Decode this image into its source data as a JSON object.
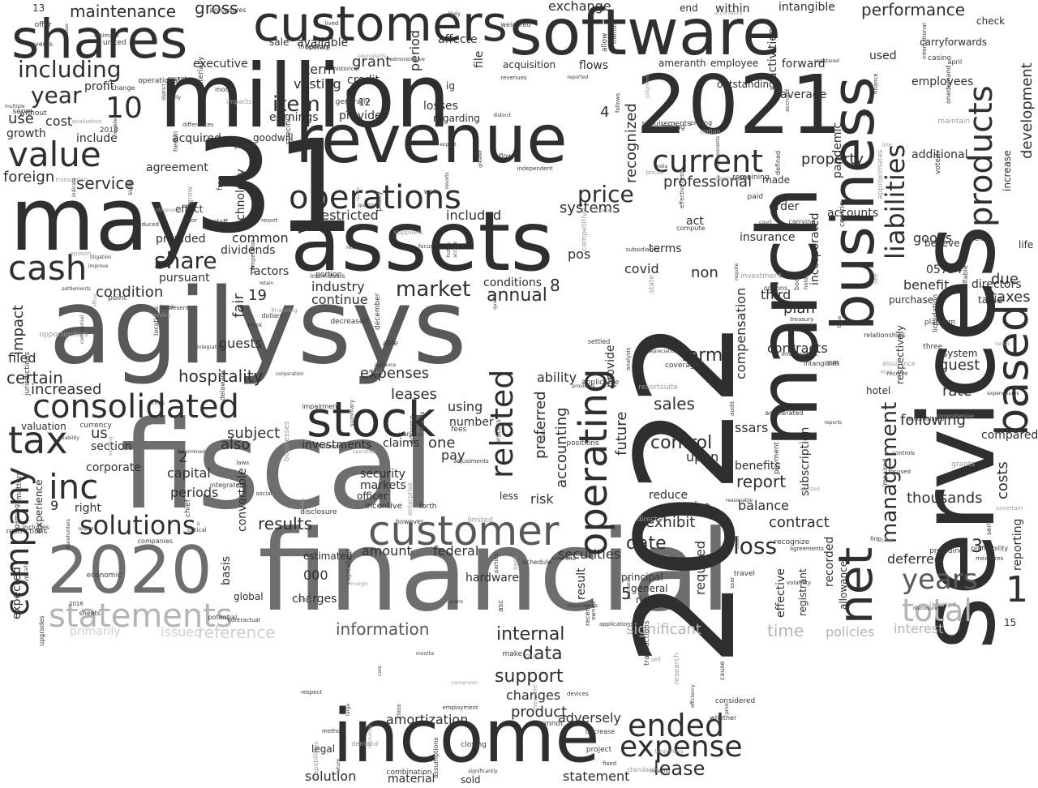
{
  "palette": {
    "dark": "#2f2f2f",
    "mid": "#585858",
    "gray": "#6e6e6e",
    "light": "#b4b4b4",
    "faint": "#cfcfcf"
  },
  "words": {
    "services": "services",
    "fiscal": "fiscal",
    "financial": "financial",
    "agilysys": "agilysys",
    "million": "million",
    "assets": "assets",
    "2021": "2021",
    "2022": "2022",
    "31": "31",
    "may": "may",
    "march": "march",
    "business": "business",
    "revenue": "revenue",
    "software": "software",
    "customers": "customers",
    "shares": "shares",
    "income": "income",
    "2020": "2020",
    "net": "net",
    "stock": "stock",
    "operations": "operations",
    "based": "based",
    "customer": "customer",
    "consolidated": "consolidated",
    "tax": "tax",
    "company": "company",
    "cash": "cash",
    "value": "value",
    "operating": "operating",
    "products": "products",
    "liabilities": "liabilities",
    "management": "management",
    "current": "current",
    "statements": "statements",
    "total": "total",
    "years": "years",
    "expense": "expense",
    "ended": "ended",
    "related": "related",
    "inc": "inc",
    "solutions": "solutions",
    "including": "including",
    "year": "year",
    "10": "10",
    "1": "1",
    "share": "share",
    "market": "market",
    "loss": "loss",
    "price": "price",
    "item": "item",
    "hospitality": "hospitality",
    "information": "information",
    "internal": "internal",
    "data": "data",
    "support": "support",
    "maintenance": "maintenance",
    "gross": "gross",
    "exchange": "exchange",
    "performance": "performance",
    "product": "product",
    "changes": "changes",
    "amortization": "amortization",
    "adversely": "adversely",
    "lease": "lease",
    "solution": "solution",
    "statement": "statement",
    "material": "material",
    "sold": "sold",
    "legal": "legal",
    "restricted": "restricted",
    "included": "included",
    "systems": "systems",
    "recognized": "recognized",
    "professional": "professional",
    "property": "property",
    "development": "development",
    "costs": "costs",
    "reporting": "reporting",
    "taxes": "taxes",
    "due": "due",
    "guest": "guest",
    "rate": "rate",
    "following": "following",
    "thousands": "thousands",
    "compared": "compared",
    "deferred": "deferred",
    "interest": "interest",
    "policies": "policies",
    "time": "time",
    "significant": "significant",
    "reference": "reference",
    "issued": "issued",
    "primarily": "primarily",
    "expected": "expected",
    "certain": "certain",
    "increased": "increased",
    "condition": "condition",
    "service": "service",
    "foreign": "foreign",
    "cost": "cost",
    "use": "use",
    "growth": "growth",
    "include": "include",
    "profit": "profit",
    "term": "term",
    "vesting": "vesting",
    "grant": "grant",
    "credit": "credit",
    "earnings": "earnings",
    "provides": "provides",
    "sale": "sale",
    "available": "available",
    "executive": "executive",
    "acquired": "acquired",
    "agreement": "agreement",
    "effect": "effect",
    "goodwill": "goodwill",
    "technology": "technology",
    "common": "common",
    "dividends": "dividends",
    "factors": "factors",
    "provided": "provided",
    "pursuant": "pursuant",
    "impact": "impact",
    "filed": "filed",
    "industry": "industry",
    "continue": "continue",
    "annual": "annual",
    "conditions": "conditions",
    "guests": "guests",
    "fair": "fair",
    "19": "19",
    "expenses": "expenses",
    "leases": "leases",
    "subject": "subject",
    "also": "also",
    "us": "us",
    "section": "section",
    "corporate": "corporate",
    "capital": "capital",
    "periods": "periods",
    "right": "right",
    "9": "9",
    "2": "2",
    "experience": "experience",
    "valuation": "valuation",
    "investments": "investments",
    "claims": "claims",
    "one": "one",
    "pay": "pay",
    "using": "using",
    "number": "number",
    "security": "security",
    "markets": "markets",
    "officer": "officer",
    "incentive": "incentive",
    "results": "results",
    "convertible": "convertible",
    "basis": "basis",
    "global": "global",
    "000": "000",
    "charges": "charges",
    "estimated": "estimated",
    "amount": "amount",
    "federal": "federal",
    "securities": "securities",
    "hardware": "hardware",
    "granted": "granted",
    "obligation": "obligation",
    "payments": "payments",
    "accounting": "accounting",
    "preferred": "preferred",
    "risk": "risk",
    "less": "less",
    "ability": "ability",
    "future": "future",
    "provide": "provide",
    "form": "form",
    "control": "control",
    "sales": "sales",
    "upon": "upon",
    "exhibit": "exhibit",
    "reduce": "reduce",
    "exercise": "exercise",
    "date": "date",
    "result": "result",
    "5": "5",
    "principal": "principal",
    "general": "general",
    "rights": "rights",
    "required": "required",
    "contract": "contract",
    "report": "report",
    "balance": "balance",
    "benefits": "benefits",
    "ssars": "ssars",
    "compensation": "compensation",
    "contracts": "contracts",
    "plan": "plan",
    "third": "third",
    "incorporated": "incorporated",
    "subscription": "subscription",
    "recorded": "recorded",
    "registrant": "registrant",
    "effective": "effective",
    "allowance": "allowance",
    "insurance": "insurance",
    "order": "order",
    "terms": "terms",
    "covid": "covid",
    "non": "non",
    "pandemic": "pandemic",
    "accounts": "accounts",
    "goods": "goods",
    "benefit": "benefit",
    "purchase": "purchase",
    "system": "system",
    "hotel": "hotel",
    "employees": "employees",
    "additional": "additional",
    "increase": "increase",
    "forward": "forward",
    "average": "average",
    "used": "used",
    "activities": "activities",
    "intangible": "intangible",
    "within": "within",
    "end": "end",
    "flows": "flows",
    "acquisition": "acquisition",
    "period": "period",
    "file": "file",
    "losses": "losses",
    "regarding": "regarding",
    "affecte": "affecte",
    "4": "4",
    "6": "6",
    "12": "12",
    "3": "3",
    "8": "8",
    "05734": "05734",
    "directors": "directors",
    "believe": "believe",
    "outstanding": "outstanding",
    "employee": "employee",
    "pos": "pos",
    "act": "act",
    "made": "made",
    "carryforwards": "carryforwards",
    "check": "check",
    "k": "k",
    "respectively": "respectively",
    "ameranth": "ameranth",
    "13": "13",
    "15": "15",
    "life": "life",
    "table": "table",
    "ig": "ig",
    "year_small": "year"
  },
  "tiny": [
    "reported",
    "receive",
    "commercial",
    "distinct",
    "plans",
    "specific",
    "generally",
    "voted",
    "enterprise",
    "estimate",
    "employment",
    "resorts",
    "recognize",
    "depreciation",
    "various",
    "actual",
    "mak",
    "months",
    "approximates",
    "jurisdictions",
    "transaction",
    "notes",
    "litigation",
    "options",
    "prices",
    "evaluation",
    "able",
    "accumulated",
    "measures",
    "three",
    "sheets",
    "treasury",
    "december",
    "herein",
    "must",
    "paid",
    "labor",
    "present",
    "events",
    "large",
    "cloud",
    "laws",
    "considered",
    "model",
    "quarterly",
    "georgia",
    "devices",
    "however",
    "administrative",
    "liquidation",
    "conversion",
    "series",
    "book",
    "delaware",
    "quarter",
    "individuals",
    "restrictions",
    "international",
    "proxy",
    "accordance",
    "dollars",
    "equivalents",
    "historical",
    "schedule",
    "social",
    "finance",
    "option",
    "opinion",
    "lived",
    "board",
    "meeting",
    "fixed",
    "intangibles",
    "access",
    "expenditures",
    "audit",
    "matters",
    "grow",
    "providers",
    "weighted",
    "assumptions",
    "decreased",
    "efficiency",
    "response",
    "respect",
    "staff",
    "disclosure",
    "allow",
    "hotels",
    "fully",
    "existing",
    "code",
    "identifiable",
    "therefore",
    "timing",
    "coverage",
    "impaired",
    "transactions",
    "businesses",
    "operational",
    "risks",
    "reports",
    "portion",
    "space",
    "corporation",
    "adverse",
    "return",
    "state",
    "forth",
    "set",
    "maintain",
    "capitalized",
    "impairment",
    "companies",
    "critical",
    "volatility",
    "retain",
    "grants",
    "core",
    "note",
    "analysis",
    "flow",
    "competition",
    "free",
    "remaining",
    "demand",
    "ssar",
    "line",
    "disclosures",
    "locations",
    "april",
    "follows",
    "asc",
    "providing",
    "public",
    "court",
    "nm",
    "defined",
    "comprehensive",
    "requirements",
    "impacts",
    "typically",
    "closing",
    "applications",
    "offer",
    "without",
    "focused",
    "cause",
    "settled",
    "improve",
    "self",
    "shareholders",
    "procedures",
    "impairments",
    "make",
    "kiosk",
    "many",
    "accrued",
    "combination",
    "base",
    "serve",
    "indicate",
    "trade",
    "district",
    "relationships",
    "payment",
    "contractual",
    "positions",
    "mobile",
    "integrated",
    "chief",
    "issuance",
    "point",
    "reasonable",
    "otherwise",
    "casino",
    "determined",
    "judgment",
    "decrease",
    "cannot",
    "india",
    "operate",
    "centric",
    "competitive",
    "see",
    "upgrades",
    "well",
    "operators",
    "resources",
    "differences",
    "standards",
    "materially",
    "research",
    "cases",
    "device",
    "adjustments",
    "inventory",
    "includes",
    "offers",
    "likely",
    "registered",
    "significantly",
    "basic",
    "independent",
    "require",
    "process",
    "reduced",
    "uncertain",
    "suppliers",
    "compute",
    "except",
    "potential",
    "suite",
    "resort",
    "whether",
    "revenues",
    "financing",
    "owned",
    "agreements",
    "integration",
    "infogenesis",
    "needs",
    "opportunities",
    "resortsuite",
    "change",
    "holders",
    "capabilities",
    "areas",
    "greater",
    "margin",
    "united",
    "2016",
    "recent",
    "prior",
    "applicable",
    "travel",
    "accelerated",
    "multiple",
    "affected",
    "limited",
    "summary",
    "environment",
    "economic",
    "menus",
    "effectiveness",
    "proceeds",
    "carrying",
    "parties",
    "orders",
    "assurance",
    "class",
    "fees",
    "controls",
    "world",
    "investment",
    "beginning",
    "expect",
    "onedemand",
    "project",
    "platform",
    "liability",
    "states",
    "february",
    "2018",
    "office",
    "director",
    "method",
    "pricing",
    "firm",
    "incurred",
    "ii",
    "gaming",
    "components",
    "subsidiaries",
    "currency",
    "focus",
    "profitability",
    "settlements"
  ]
}
